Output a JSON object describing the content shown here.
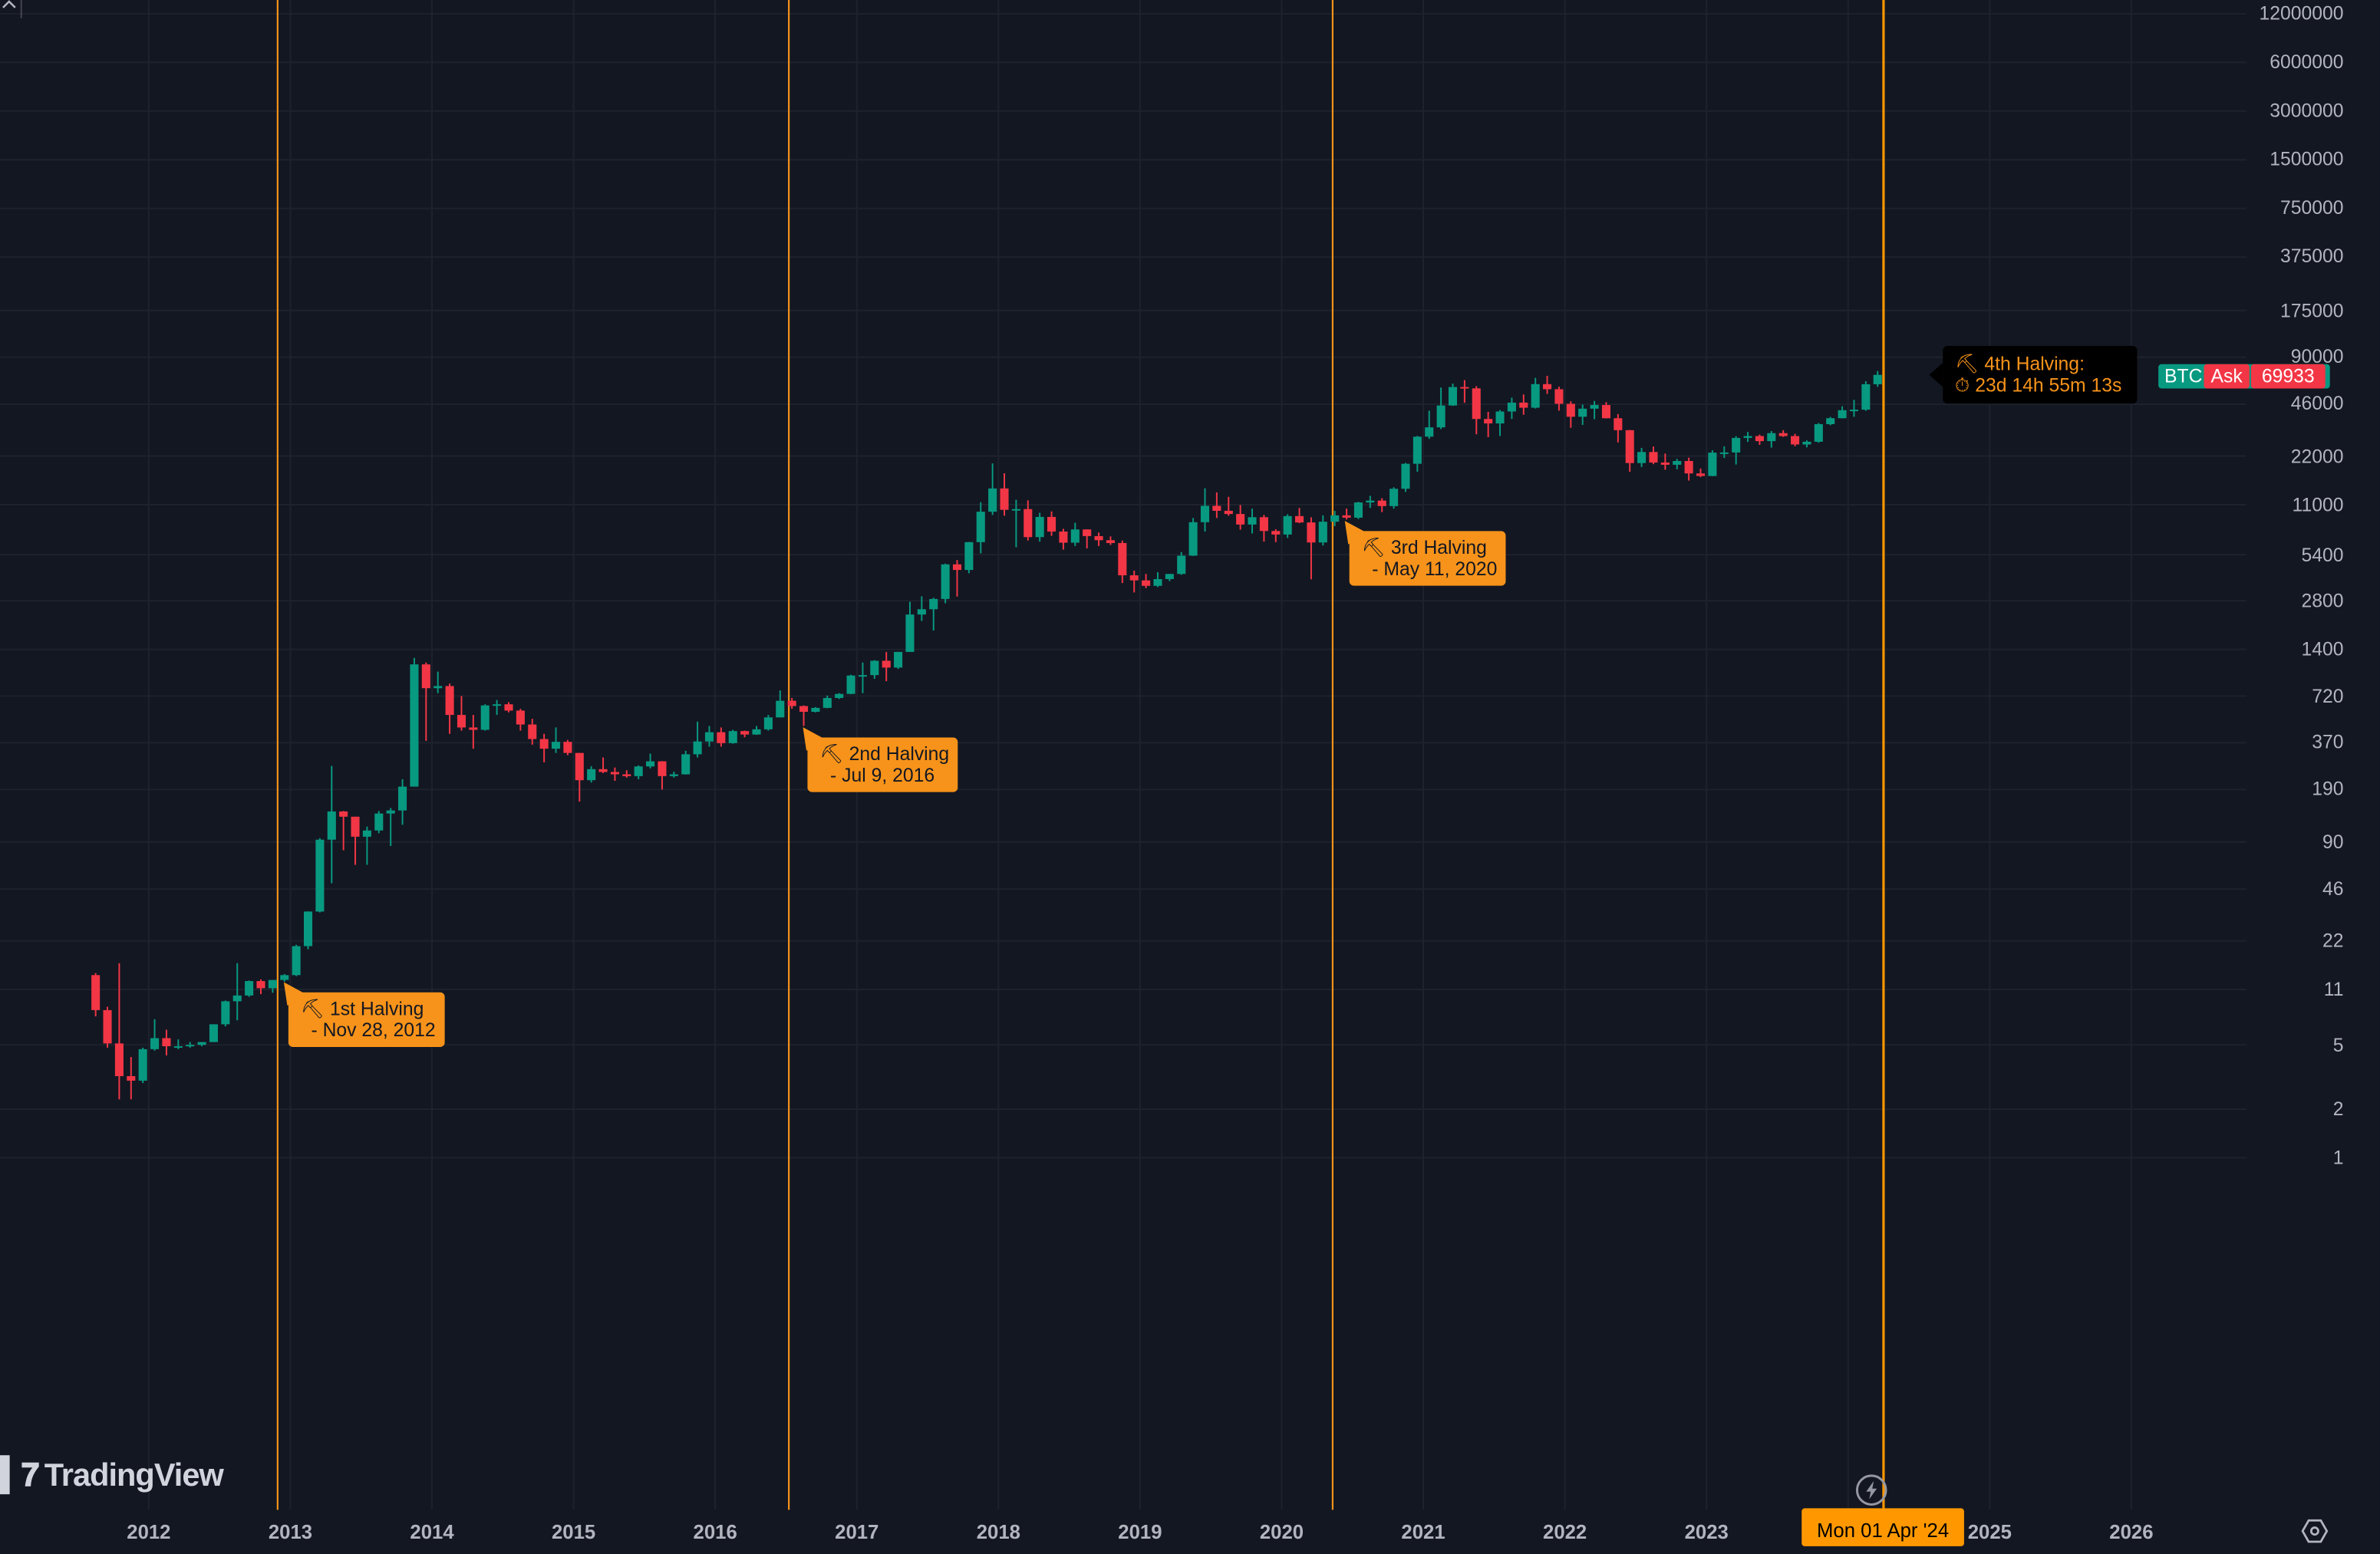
{
  "chart_data": {
    "type": "candlestick",
    "symbol": "BTC",
    "interval": "1M",
    "start_month": "2011-08",
    "scale": "log",
    "ylim": [
      1,
      12000000
    ],
    "xlim": [
      2011.4,
      2026.9
    ],
    "grid": true,
    "y_ticks": [
      "12000000",
      "6000000",
      "3000000",
      "1500000",
      "750000",
      "375000",
      "175000",
      "90000",
      "46000",
      "22000",
      "11000",
      "5400",
      "2800",
      "1400",
      "720",
      "370",
      "190",
      "90",
      "46",
      "22",
      "11",
      "5",
      "2",
      "1"
    ],
    "y_tick_values": [
      12000000,
      6000000,
      3000000,
      1500000,
      750000,
      375000,
      175000,
      90000,
      46000,
      22000,
      11000,
      5400,
      2800,
      1400,
      720,
      370,
      190,
      90,
      46,
      22,
      11,
      5,
      2,
      1
    ],
    "x_ticks": [
      "2012",
      "2013",
      "2014",
      "2015",
      "2016",
      "2017",
      "2018",
      "2019",
      "2020",
      "2021",
      "2022",
      "2023",
      "2024",
      "2025",
      "2026"
    ],
    "x_tick_values": [
      2012,
      2013,
      2014,
      2015,
      2016,
      2017,
      2018,
      2019,
      2020,
      2021,
      2022,
      2023,
      2024,
      2025,
      2026
    ],
    "x_tick_hidden": [
      false,
      false,
      false,
      false,
      false,
      false,
      false,
      false,
      false,
      false,
      false,
      false,
      true,
      false,
      false
    ],
    "ohlc": [
      [
        13.5,
        13.9,
        7.5,
        8.2
      ],
      [
        8.2,
        8.6,
        4.8,
        5.1
      ],
      [
        5.1,
        16,
        2.3,
        3.2
      ],
      [
        3.2,
        4.2,
        2.3,
        3.0
      ],
      [
        3.0,
        4.8,
        2.9,
        4.7
      ],
      [
        4.7,
        7.2,
        4.6,
        5.5
      ],
      [
        5.5,
        6.2,
        4.3,
        4.9
      ],
      [
        4.9,
        5.4,
        4.7,
        4.9
      ],
      [
        4.9,
        5.2,
        4.8,
        5.0
      ],
      [
        5.0,
        5.2,
        4.9,
        5.2
      ],
      [
        5.2,
        6.7,
        5.2,
        6.7
      ],
      [
        6.7,
        9.4,
        6.5,
        9.3
      ],
      [
        9.3,
        16,
        7.1,
        10.1
      ],
      [
        10.1,
        12.5,
        9.9,
        12.4
      ],
      [
        12.4,
        12.7,
        10.3,
        11.2
      ],
      [
        11.2,
        12.6,
        10.5,
        12.6
      ],
      [
        12.6,
        13.7,
        12.3,
        13.5
      ],
      [
        13.5,
        20.8,
        13.3,
        20.4
      ],
      [
        20.4,
        33.5,
        19.5,
        33.4
      ],
      [
        33.4,
        95,
        33,
        93
      ],
      [
        93,
        266,
        50,
        139
      ],
      [
        139,
        140,
        80,
        129
      ],
      [
        129,
        129,
        65,
        97
      ],
      [
        97,
        112,
        65,
        106
      ],
      [
        106,
        140,
        102,
        135
      ],
      [
        135,
        146,
        85,
        141
      ],
      [
        141,
        220,
        115,
        198
      ],
      [
        198,
        1240,
        200,
        1130
      ],
      [
        1130,
        1160,
        380,
        805
      ],
      [
        805,
        1020,
        750,
        830
      ],
      [
        830,
        860,
        420,
        550
      ],
      [
        550,
        720,
        440,
        460
      ],
      [
        460,
        550,
        340,
        445
      ],
      [
        445,
        640,
        440,
        630
      ],
      [
        630,
        680,
        550,
        640
      ],
      [
        640,
        660,
        570,
        585
      ],
      [
        585,
        600,
        440,
        480
      ],
      [
        480,
        520,
        360,
        390
      ],
      [
        390,
        420,
        280,
        340
      ],
      [
        340,
        460,
        320,
        375
      ],
      [
        375,
        385,
        310,
        320
      ],
      [
        320,
        320,
        160,
        217
      ],
      [
        217,
        265,
        210,
        254
      ],
      [
        254,
        300,
        240,
        244
      ],
      [
        244,
        260,
        215,
        236
      ],
      [
        236,
        250,
        225,
        230
      ],
      [
        230,
        268,
        220,
        264
      ],
      [
        264,
        317,
        257,
        284
      ],
      [
        284,
        285,
        190,
        230
      ],
      [
        230,
        245,
        225,
        236
      ],
      [
        236,
        330,
        235,
        314
      ],
      [
        314,
        500,
        300,
        377
      ],
      [
        377,
        470,
        350,
        430
      ],
      [
        430,
        460,
        350,
        368
      ],
      [
        368,
        445,
        365,
        437
      ],
      [
        437,
        440,
        400,
        416
      ],
      [
        416,
        470,
        414,
        448
      ],
      [
        448,
        550,
        440,
        531
      ],
      [
        531,
        780,
        531,
        673
      ],
      [
        673,
        700,
        600,
        624
      ],
      [
        624,
        630,
        470,
        575
      ],
      [
        575,
        615,
        570,
        608
      ],
      [
        608,
        725,
        605,
        700
      ],
      [
        700,
        750,
        690,
        742
      ],
      [
        742,
        975,
        740,
        964
      ],
      [
        964,
        1160,
        750,
        970
      ],
      [
        970,
        1200,
        920,
        1190
      ],
      [
        1190,
        1350,
        890,
        1080
      ],
      [
        1080,
        1350,
        1060,
        1350
      ],
      [
        1350,
        2760,
        1350,
        2300
      ],
      [
        2300,
        2980,
        2100,
        2480
      ],
      [
        2480,
        2920,
        1830,
        2870
      ],
      [
        2870,
        4750,
        2700,
        4700
      ],
      [
        4700,
        5000,
        2970,
        4340
      ],
      [
        4340,
        6470,
        4140,
        6450
      ],
      [
        6450,
        11400,
        5500,
        9950
      ],
      [
        9950,
        19800,
        9500,
        13860
      ],
      [
        13860,
        17200,
        9400,
        10220
      ],
      [
        10220,
        11800,
        6000,
        10330
      ],
      [
        10330,
        11700,
        6600,
        6930
      ],
      [
        6930,
        9800,
        6500,
        9240
      ],
      [
        9240,
        9990,
        7050,
        7500
      ],
      [
        7500,
        7800,
        5800,
        6400
      ],
      [
        6400,
        8500,
        6100,
        7730
      ],
      [
        7730,
        7750,
        5900,
        7030
      ],
      [
        7030,
        7400,
        6100,
        6630
      ],
      [
        6630,
        7000,
        6200,
        6370
      ],
      [
        6370,
        6600,
        3600,
        4020
      ],
      [
        4020,
        4300,
        3150,
        3740
      ],
      [
        3740,
        4100,
        3350,
        3460
      ],
      [
        3460,
        4200,
        3400,
        3810
      ],
      [
        3810,
        4100,
        3700,
        4100
      ],
      [
        4100,
        5600,
        4050,
        5320
      ],
      [
        5320,
        9100,
        5300,
        8570
      ],
      [
        8570,
        13900,
        7500,
        10820
      ],
      [
        10820,
        13100,
        9100,
        10080
      ],
      [
        10080,
        12300,
        9400,
        9630
      ],
      [
        9630,
        10950,
        7700,
        8290
      ],
      [
        8290,
        10400,
        7300,
        9200
      ],
      [
        9200,
        9500,
        6500,
        7560
      ],
      [
        7560,
        7750,
        6450,
        7190
      ],
      [
        7190,
        9600,
        6850,
        9350
      ],
      [
        9350,
        10500,
        8450,
        8540
      ],
      [
        8540,
        9200,
        3800,
        6420
      ],
      [
        6420,
        9450,
        6150,
        8630
      ],
      [
        8630,
        10070,
        8100,
        9450
      ],
      [
        9450,
        10400,
        8900,
        9140
      ],
      [
        9140,
        11450,
        8970,
        11350
      ],
      [
        11350,
        12480,
        10500,
        11660
      ],
      [
        11660,
        12070,
        9900,
        10780
      ],
      [
        10780,
        14100,
        10400,
        13800
      ],
      [
        13800,
        19950,
        13200,
        19700
      ],
      [
        19700,
        29300,
        17600,
        28990
      ],
      [
        28990,
        41950,
        28100,
        33100
      ],
      [
        33100,
        58350,
        32300,
        45200
      ],
      [
        45200,
        61800,
        45000,
        58800
      ],
      [
        58800,
        64850,
        47000,
        57700
      ],
      [
        57700,
        59500,
        30000,
        37300
      ],
      [
        37300,
        41300,
        28800,
        35000
      ],
      [
        35000,
        42400,
        29300,
        41500
      ],
      [
        41500,
        50500,
        37300,
        47100
      ],
      [
        47100,
        52900,
        39600,
        43800
      ],
      [
        43800,
        67000,
        43300,
        61300
      ],
      [
        61300,
        69000,
        53300,
        57000
      ],
      [
        57000,
        59100,
        42000,
        46300
      ],
      [
        46300,
        47990,
        32900,
        38500
      ],
      [
        38500,
        45800,
        34300,
        43200
      ],
      [
        43200,
        48200,
        37200,
        45500
      ],
      [
        45500,
        47400,
        37600,
        37700
      ],
      [
        37700,
        40000,
        26700,
        31800
      ],
      [
        31800,
        31900,
        17600,
        19900
      ],
      [
        19900,
        24700,
        18800,
        23300
      ],
      [
        23300,
        25200,
        19600,
        20050
      ],
      [
        20050,
        22800,
        18100,
        19430
      ],
      [
        19430,
        21100,
        18200,
        20500
      ],
      [
        20500,
        21500,
        15500,
        17170
      ],
      [
        17170,
        18400,
        16300,
        16550
      ],
      [
        16550,
        23900,
        16500,
        23100
      ],
      [
        23100,
        25250,
        21400,
        23150
      ],
      [
        23150,
        29200,
        19500,
        28480
      ],
      [
        28480,
        31000,
        26900,
        29250
      ],
      [
        29250,
        29850,
        25800,
        27200
      ],
      [
        27200,
        31400,
        24800,
        30480
      ],
      [
        30480,
        31800,
        28900,
        29230
      ],
      [
        29230,
        30200,
        25300,
        25940
      ],
      [
        25940,
        27500,
        24900,
        26970
      ],
      [
        26970,
        35200,
        26600,
        34650
      ],
      [
        34650,
        38400,
        34100,
        37720
      ],
      [
        37720,
        44700,
        37600,
        42270
      ],
      [
        42270,
        48970,
        38500,
        42580
      ],
      [
        42580,
        63900,
        41900,
        61180
      ],
      [
        61180,
        73800,
        59000,
        69933
      ]
    ],
    "halvings": [
      {
        "date_value": 2012.91,
        "title": "1st Halving",
        "date": "- Nov 28, 2012"
      },
      {
        "date_value": 2016.52,
        "title": "2nd Halving",
        "date": "- Jul 9, 2016"
      },
      {
        "date_value": 2020.36,
        "title": "3rd Halving",
        "date": "- May 11, 2020"
      },
      {
        "date_value": 2024.25,
        "title": "4th Halving:",
        "countdown": "23d 14h 55m 13s"
      }
    ]
  },
  "price_badge": {
    "symbol": "BTC",
    "side": "Ask",
    "price": "69933"
  },
  "cursor_date": "Mon 01 Apr '24",
  "logo_text": "TradingView",
  "colors": {
    "up": "#089981",
    "down": "#f23645",
    "halving_line": "#f7931a",
    "background": "#131722",
    "grid": "#1e222d"
  }
}
